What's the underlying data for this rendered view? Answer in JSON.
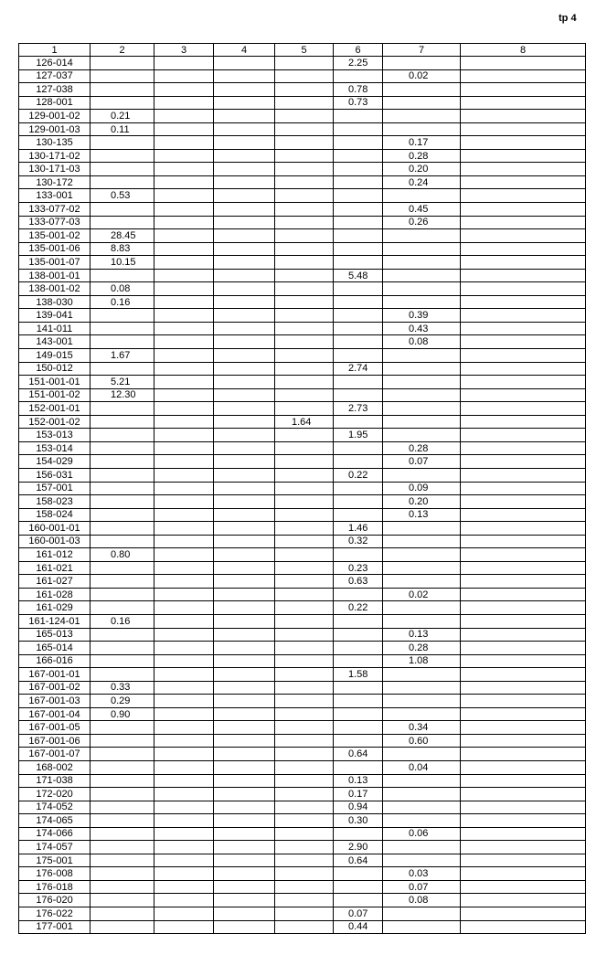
{
  "page_mark": "tp 4",
  "table": {
    "headers": [
      "1",
      "2",
      "3",
      "4",
      "5",
      "6",
      "7",
      "8"
    ],
    "rows": [
      [
        "126-014",
        "",
        "",
        "",
        "",
        "2.25",
        "",
        ""
      ],
      [
        "127-037",
        "",
        "",
        "",
        "",
        "",
        "0.02",
        ""
      ],
      [
        "127-038",
        "",
        "",
        "",
        "",
        "0.78",
        "",
        ""
      ],
      [
        "128-001",
        "",
        "",
        "",
        "",
        "0.73",
        "",
        ""
      ],
      [
        "129-001-02",
        "0.21",
        "",
        "",
        "",
        "",
        "",
        ""
      ],
      [
        "129-001-03",
        "0.11",
        "",
        "",
        "",
        "",
        "",
        ""
      ],
      [
        "130-135",
        "",
        "",
        "",
        "",
        "",
        "0.17",
        ""
      ],
      [
        "130-171-02",
        "",
        "",
        "",
        "",
        "",
        "0.28",
        ""
      ],
      [
        "130-171-03",
        "",
        "",
        "",
        "",
        "",
        "0.20",
        ""
      ],
      [
        "130-172",
        "",
        "",
        "",
        "",
        "",
        "0.24",
        ""
      ],
      [
        "133-001",
        "0.53",
        "",
        "",
        "",
        "",
        "",
        ""
      ],
      [
        "133-077-02",
        "",
        "",
        "",
        "",
        "",
        "0.45",
        ""
      ],
      [
        "133-077-03",
        "",
        "",
        "",
        "",
        "",
        "0.26",
        ""
      ],
      [
        "135-001-02",
        "28.45",
        "",
        "",
        "",
        "",
        "",
        ""
      ],
      [
        "135-001-06",
        "8.83",
        "",
        "",
        "",
        "",
        "",
        ""
      ],
      [
        "135-001-07",
        "10.15",
        "",
        "",
        "",
        "",
        "",
        ""
      ],
      [
        "138-001-01",
        "",
        "",
        "",
        "",
        "5.48",
        "",
        ""
      ],
      [
        "138-001-02",
        "0.08",
        "",
        "",
        "",
        "",
        "",
        ""
      ],
      [
        "138-030",
        "0.16",
        "",
        "",
        "",
        "",
        "",
        ""
      ],
      [
        "139-041",
        "",
        "",
        "",
        "",
        "",
        "0.39",
        ""
      ],
      [
        "141-011",
        "",
        "",
        "",
        "",
        "",
        "0.43",
        ""
      ],
      [
        "143-001",
        "",
        "",
        "",
        "",
        "",
        "0.08",
        ""
      ],
      [
        "149-015",
        "1.67",
        "",
        "",
        "",
        "",
        "",
        ""
      ],
      [
        "150-012",
        "",
        "",
        "",
        "",
        "2.74",
        "",
        ""
      ],
      [
        "151-001-01",
        "5.21",
        "",
        "",
        "",
        "",
        "",
        ""
      ],
      [
        "151-001-02",
        "12.30",
        "",
        "",
        "",
        "",
        "",
        ""
      ],
      [
        "152-001-01",
        "",
        "",
        "",
        "",
        "2.73",
        "",
        ""
      ],
      [
        "152-001-02",
        "",
        "",
        "",
        "1.64",
        "",
        "",
        ""
      ],
      [
        "153-013",
        "",
        "",
        "",
        "",
        "1.95",
        "",
        ""
      ],
      [
        "153-014",
        "",
        "",
        "",
        "",
        "",
        "0.28",
        ""
      ],
      [
        "154-029",
        "",
        "",
        "",
        "",
        "",
        "0.07",
        ""
      ],
      [
        "156-031",
        "",
        "",
        "",
        "",
        "0.22",
        "",
        ""
      ],
      [
        "157-001",
        "",
        "",
        "",
        "",
        "",
        "0.09",
        ""
      ],
      [
        "158-023",
        "",
        "",
        "",
        "",
        "",
        "0.20",
        ""
      ],
      [
        "158-024",
        "",
        "",
        "",
        "",
        "",
        "0.13",
        ""
      ],
      [
        "160-001-01",
        "",
        "",
        "",
        "",
        "1.46",
        "",
        ""
      ],
      [
        "160-001-03",
        "",
        "",
        "",
        "",
        "0.32",
        "",
        ""
      ],
      [
        "161-012",
        "0.80",
        "",
        "",
        "",
        "",
        "",
        ""
      ],
      [
        "161-021",
        "",
        "",
        "",
        "",
        "0.23",
        "",
        ""
      ],
      [
        "161-027",
        "",
        "",
        "",
        "",
        "0.63",
        "",
        ""
      ],
      [
        "161-028",
        "",
        "",
        "",
        "",
        "",
        "0.02",
        ""
      ],
      [
        "161-029",
        "",
        "",
        "",
        "",
        "0.22",
        "",
        ""
      ],
      [
        "161-124-01",
        "0.16",
        "",
        "",
        "",
        "",
        "",
        ""
      ],
      [
        "165-013",
        "",
        "",
        "",
        "",
        "",
        "0.13",
        ""
      ],
      [
        "165-014",
        "",
        "",
        "",
        "",
        "",
        "0.28",
        ""
      ],
      [
        "166-016",
        "",
        "",
        "",
        "",
        "",
        "1.08",
        ""
      ],
      [
        "167-001-01",
        "",
        "",
        "",
        "",
        "1.58",
        "",
        ""
      ],
      [
        "167-001-02",
        "0.33",
        "",
        "",
        "",
        "",
        "",
        ""
      ],
      [
        "167-001-03",
        "0.29",
        "",
        "",
        "",
        "",
        "",
        ""
      ],
      [
        "167-001-04",
        "0.90",
        "",
        "",
        "",
        "",
        "",
        ""
      ],
      [
        "167-001-05",
        "",
        "",
        "",
        "",
        "",
        "0.34",
        ""
      ],
      [
        "167-001-06",
        "",
        "",
        "",
        "",
        "",
        "0.60",
        ""
      ],
      [
        "167-001-07",
        "",
        "",
        "",
        "",
        "0.64",
        "",
        ""
      ],
      [
        "168-002",
        "",
        "",
        "",
        "",
        "",
        "0.04",
        ""
      ],
      [
        "171-038",
        "",
        "",
        "",
        "",
        "0.13",
        "",
        ""
      ],
      [
        "172-020",
        "",
        "",
        "",
        "",
        "0.17",
        "",
        ""
      ],
      [
        "174-052",
        "",
        "",
        "",
        "",
        "0.94",
        "",
        ""
      ],
      [
        "174-065",
        "",
        "",
        "",
        "",
        "0.30",
        "",
        ""
      ],
      [
        "174-066",
        "",
        "",
        "",
        "",
        "",
        "0.06",
        ""
      ],
      [
        "174-057",
        "",
        "",
        "",
        "",
        "2.90",
        "",
        ""
      ],
      [
        "175-001",
        "",
        "",
        "",
        "",
        "0.64",
        "",
        ""
      ],
      [
        "176-008",
        "",
        "",
        "",
        "",
        "",
        "0.03",
        ""
      ],
      [
        "176-018",
        "",
        "",
        "",
        "",
        "",
        "0.07",
        ""
      ],
      [
        "176-020",
        "",
        "",
        "",
        "",
        "",
        "0.08",
        ""
      ],
      [
        "176-022",
        "",
        "",
        "",
        "",
        "0.07",
        "",
        ""
      ],
      [
        "177-001",
        "",
        "",
        "",
        "",
        "0.44",
        "",
        ""
      ]
    ]
  }
}
